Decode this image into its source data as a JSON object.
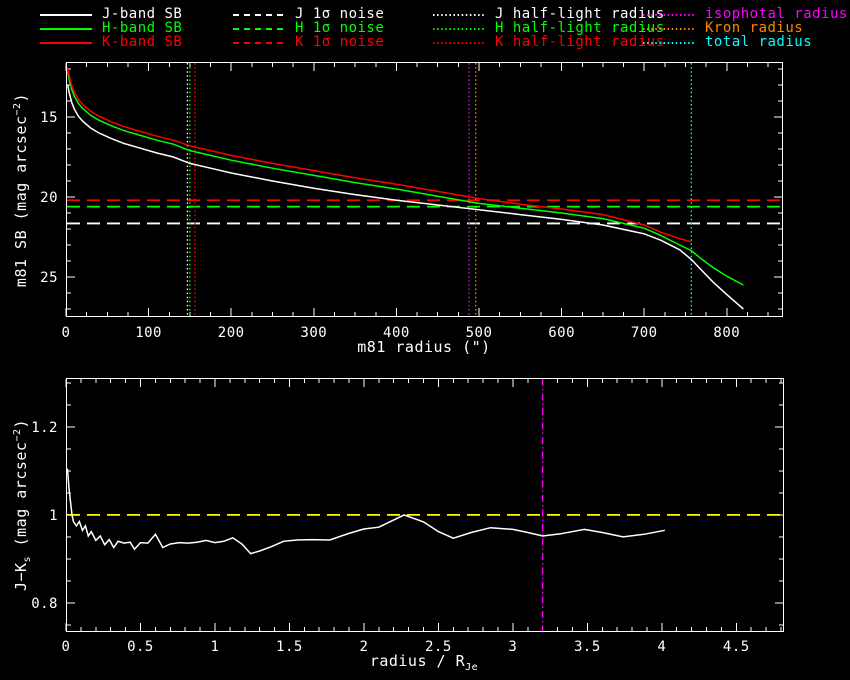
{
  "bg_color": "#000000",
  "colors": {
    "j_band": "#ffffff",
    "h_band": "#00ff00",
    "k_band": "#ff0000",
    "isophotal": "#ff00ff",
    "kron": "#ff8700",
    "total": "#00ffff",
    "unity_line": "#ffff00",
    "axis": "#ffffff"
  },
  "legend": {
    "columns": [
      {
        "entries": [
          {
            "label": "J-band SB",
            "color": "#ffffff",
            "line": "solid"
          },
          {
            "label": "H-band SB",
            "color": "#00ff00",
            "line": "solid"
          },
          {
            "label": "K-band SB",
            "color": "#ff0000",
            "line": "solid"
          }
        ]
      },
      {
        "entries": [
          {
            "label": "J 1σ noise",
            "color": "#ffffff",
            "line": "dashed"
          },
          {
            "label": "H 1σ noise",
            "color": "#00ff00",
            "line": "dashed"
          },
          {
            "label": "K 1σ noise",
            "color": "#ff0000",
            "line": "dashed"
          }
        ]
      },
      {
        "entries": [
          {
            "label": "J half-light radius",
            "color": "#ffffff",
            "line": "dotted"
          },
          {
            "label": "H half-light radius",
            "color": "#00ff00",
            "line": "dotted"
          },
          {
            "label": "K half-light radius",
            "color": "#ff0000",
            "line": "dotted"
          }
        ]
      },
      {
        "entries": [
          {
            "label": "isophotal radius",
            "color": "#ff00ff",
            "line": "dotted"
          },
          {
            "label": "Kron radius",
            "color": "#ff8700",
            "line": "dotted"
          },
          {
            "label": "total radius",
            "color": "#00ffff",
            "line": "dotted"
          }
        ]
      }
    ]
  },
  "charts": {
    "top": {
      "xlabel": "m81 radius (\")",
      "ylabel_parts": {
        "pre": "m81 SB (mag arcsec",
        "sup": "−2",
        "post": ")"
      }
    },
    "bottom": {
      "xlabel_parts": {
        "pre": "radius / R",
        "sub": "Je"
      },
      "ylabel_parts": {
        "pre": "J−K",
        "sub": "s",
        "mid": " (mag arcsec",
        "sup": "−2",
        "post": ")"
      }
    }
  },
  "chart_data": [
    {
      "id": "sb_profile",
      "type": "line",
      "title": "",
      "xlabel": "m81 radius (\")",
      "ylabel": "m81 SB (mag arcsec^-2)",
      "xlim": [
        0,
        868
      ],
      "ylim_bottom_top": [
        27.5,
        11.56
      ],
      "y_axis_inverted_magnitudes": true,
      "grid": false,
      "legend_position": "top",
      "x_ticks": [
        0,
        100,
        200,
        300,
        400,
        500,
        600,
        700,
        800
      ],
      "x_tick_labels": [
        "0",
        "100",
        "200",
        "300",
        "400",
        "500",
        "600",
        "700",
        "800"
      ],
      "y_ticks": [
        15,
        20,
        25
      ],
      "y_tick_labels": [
        "15",
        "20",
        "25"
      ],
      "series": [
        {
          "name": "J-band SB",
          "color": "#ffffff",
          "style": "solid",
          "x": [
            2,
            4,
            7,
            10,
            15,
            20,
            30,
            40,
            55,
            70,
            90,
            110,
            130,
            150,
            175,
            200,
            250,
            300,
            350,
            400,
            450,
            500,
            550,
            600,
            650,
            700,
            720,
            743,
            757,
            770,
            783,
            800,
            820
          ],
          "y": [
            13.0,
            13.5,
            14.1,
            14.5,
            14.95,
            15.25,
            15.7,
            16.0,
            16.35,
            16.65,
            16.95,
            17.25,
            17.5,
            17.9,
            18.2,
            18.5,
            19.0,
            19.45,
            19.85,
            20.2,
            20.5,
            20.8,
            21.1,
            21.4,
            21.75,
            22.3,
            22.7,
            23.3,
            23.9,
            24.6,
            25.3,
            26.1,
            27.0
          ]
        },
        {
          "name": "H-band SB",
          "color": "#00ff00",
          "style": "solid",
          "x": [
            2,
            4,
            7,
            10,
            15,
            20,
            30,
            40,
            55,
            70,
            90,
            110,
            130,
            150,
            175,
            200,
            250,
            300,
            350,
            400,
            450,
            500,
            550,
            600,
            650,
            700,
            720,
            743,
            757,
            770,
            783,
            800,
            820
          ],
          "y": [
            12.15,
            12.7,
            13.3,
            13.7,
            14.15,
            14.45,
            14.9,
            15.2,
            15.55,
            15.85,
            16.15,
            16.45,
            16.7,
            17.1,
            17.4,
            17.7,
            18.2,
            18.65,
            19.1,
            19.5,
            19.95,
            20.4,
            20.7,
            21.0,
            21.35,
            21.95,
            22.4,
            23.0,
            23.35,
            23.9,
            24.4,
            24.95,
            25.5
          ]
        },
        {
          "name": "K-band SB",
          "color": "#ff0000",
          "style": "solid",
          "x": [
            2,
            4,
            7,
            10,
            15,
            20,
            30,
            40,
            55,
            70,
            90,
            110,
            130,
            150,
            175,
            200,
            250,
            300,
            350,
            400,
            450,
            500,
            550,
            600,
            650,
            700,
            720,
            743,
            757
          ],
          "y": [
            11.9,
            12.45,
            13.05,
            13.45,
            13.9,
            14.2,
            14.65,
            14.95,
            15.3,
            15.6,
            15.9,
            16.2,
            16.45,
            16.8,
            17.1,
            17.4,
            17.9,
            18.35,
            18.8,
            19.2,
            19.65,
            20.1,
            20.45,
            20.75,
            21.1,
            21.75,
            22.2,
            22.6,
            22.8
          ]
        }
      ],
      "hlines": [
        {
          "name": "K 1σ noise",
          "y": 20.2,
          "color": "#ff0000",
          "style": "dashed"
        },
        {
          "name": "H 1σ noise",
          "y": 20.6,
          "color": "#00ff00",
          "style": "dashed"
        },
        {
          "name": "J 1σ noise",
          "y": 21.65,
          "color": "#ffffff",
          "style": "dashed"
        }
      ],
      "vlines": [
        {
          "name": "J half-light radius",
          "x": 147,
          "color": "#ffffff",
          "style": "dotted"
        },
        {
          "name": "H half-light radius",
          "x": 150,
          "color": "#00ff00",
          "style": "dotted"
        },
        {
          "name": "K half-light radius",
          "x": 156,
          "color": "#ff0000",
          "style": "dotted"
        },
        {
          "name": "isophotal radius",
          "x": 488,
          "color": "#ff00ff",
          "style": "dotted"
        },
        {
          "name": "Kron radius",
          "x": 496,
          "color": "#ff8700",
          "style": "dotted"
        },
        {
          "name": "total radius",
          "x": 757,
          "color": "#00ffff",
          "style": "dotted"
        }
      ]
    },
    {
      "id": "j_minus_ks_color_profile",
      "type": "line",
      "title": "",
      "xlabel": "radius / R_Je",
      "ylabel": "J-Ks (mag arcsec^-2)",
      "xlim": [
        0,
        4.82
      ],
      "ylim_bottom_top": [
        0.734,
        1.311
      ],
      "grid": false,
      "x_ticks": [
        0,
        0.5,
        1,
        1.5,
        2,
        2.5,
        3,
        3.5,
        4,
        4.5
      ],
      "x_tick_labels": [
        "0",
        "0.5",
        "1",
        "1.5",
        "2",
        "2.5",
        "3",
        "3.5",
        "4",
        "4.5"
      ],
      "y_ticks": [
        0.8,
        1,
        1.2
      ],
      "y_tick_labels": [
        "0.8",
        "1",
        "1.2"
      ],
      "series": [
        {
          "name": "J-Ks color",
          "color": "#ffffff",
          "style": "solid",
          "x": [
            0.01,
            0.02,
            0.04,
            0.05,
            0.07,
            0.09,
            0.11,
            0.13,
            0.15,
            0.17,
            0.2,
            0.23,
            0.26,
            0.29,
            0.32,
            0.35,
            0.39,
            0.43,
            0.46,
            0.5,
            0.55,
            0.6,
            0.65,
            0.7,
            0.76,
            0.82,
            0.88,
            0.94,
            1.0,
            1.06,
            1.12,
            1.18,
            1.24,
            1.3,
            1.38,
            1.46,
            1.55,
            1.65,
            1.77,
            1.9,
            2.0,
            2.1,
            2.27,
            2.4,
            2.5,
            2.6,
            2.72,
            2.85,
            3.0,
            3.1,
            3.2,
            3.32,
            3.48,
            3.6,
            3.74,
            3.88,
            4.02
          ],
          "y": [
            1.105,
            1.06,
            1.0,
            0.985,
            0.975,
            0.985,
            0.965,
            0.975,
            0.952,
            0.962,
            0.942,
            0.952,
            0.932,
            0.944,
            0.926,
            0.94,
            0.936,
            0.938,
            0.922,
            0.937,
            0.936,
            0.956,
            0.926,
            0.934,
            0.937,
            0.936,
            0.938,
            0.942,
            0.937,
            0.94,
            0.948,
            0.934,
            0.912,
            0.918,
            0.928,
            0.94,
            0.943,
            0.944,
            0.943,
            0.958,
            0.968,
            0.972,
            1.0,
            0.984,
            0.962,
            0.947,
            0.96,
            0.971,
            0.967,
            0.96,
            0.952,
            0.957,
            0.967,
            0.96,
            0.95,
            0.956,
            0.965
          ]
        }
      ],
      "hlines": [
        {
          "name": "unity color line",
          "y": 1.0,
          "color": "#ffff00",
          "style": "dashed"
        }
      ],
      "vlines": [
        {
          "name": "isophotal radius",
          "x": 3.2,
          "color": "#ff00ff",
          "style": "dashdot"
        }
      ]
    }
  ]
}
